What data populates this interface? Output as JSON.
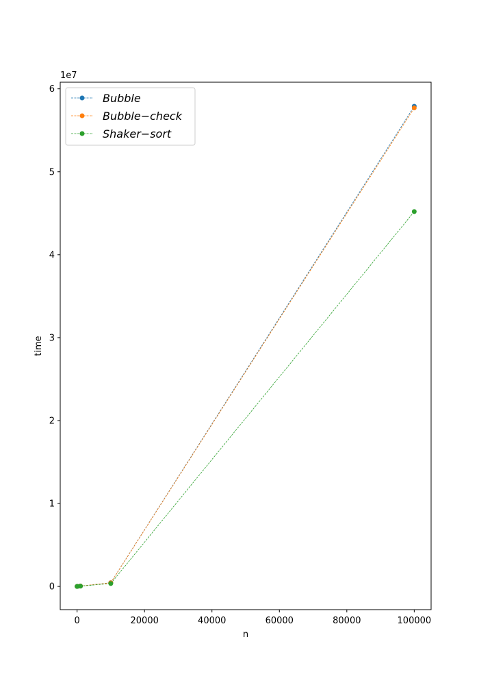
{
  "chart_data": {
    "type": "line",
    "title": "",
    "xlabel": "n",
    "ylabel": "time",
    "y_offset_label": "1e7",
    "xlim": [
      -5000,
      105000
    ],
    "ylim": [
      -2800000,
      60800000
    ],
    "xticks": [
      0,
      20000,
      40000,
      60000,
      80000,
      100000
    ],
    "xtick_labels": [
      "0",
      "20000",
      "40000",
      "60000",
      "80000",
      "100000"
    ],
    "yticks": [
      0,
      10000000,
      20000000,
      30000000,
      40000000,
      50000000,
      60000000
    ],
    "ytick_labels": [
      "0",
      "1",
      "2",
      "3",
      "4",
      "5",
      "6"
    ],
    "grid": false,
    "legend_position": "top-left",
    "x": [
      10,
      100,
      1000,
      10000,
      100000
    ],
    "series": [
      {
        "name": "Bubble",
        "color": "#1f77b4",
        "values": [
          50,
          5000,
          45000,
          450000,
          57900000
        ]
      },
      {
        "name": "Bubble−check",
        "color": "#ff7f0e",
        "values": [
          50,
          5000,
          45000,
          440000,
          57700000
        ]
      },
      {
        "name": "Shaker−sort",
        "color": "#2ca02c",
        "values": [
          50,
          4000,
          35000,
          350000,
          45200000
        ]
      }
    ]
  }
}
